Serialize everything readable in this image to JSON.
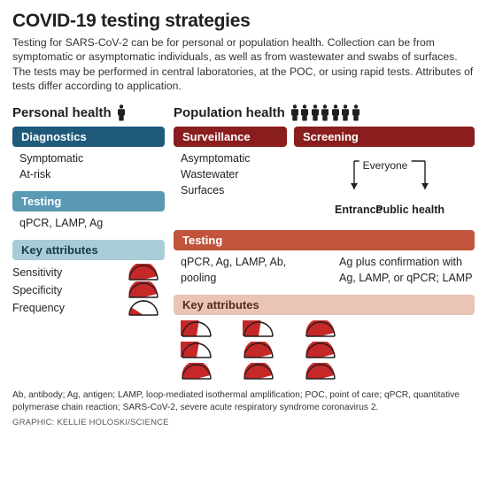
{
  "title": "COVID-19 testing strategies",
  "intro": "Testing for SARS-CoV-2 can be for personal or population health. Collection can be from symptomatic or asymptomatic individuals, as well as from wastewater and swabs of surfaces. The tests may be performed in central laboratories, at the POC, or using rapid tests. Attributes of tests differ according to application.",
  "personal": {
    "heading": "Personal health",
    "icon_count": 1,
    "sections": {
      "diagnostics": {
        "label": "Diagnostics",
        "color": "#1f5a7a",
        "items": [
          "Symptomatic",
          "At-risk"
        ]
      },
      "testing": {
        "label": "Testing",
        "color": "#5a9ab5",
        "text": "qPCR, LAMP, Ag"
      },
      "attributes": {
        "label": "Key attributes",
        "color": "#a8cdd9",
        "label_text_color": "#1a3a4a",
        "rows": [
          {
            "name": "Sensitivity",
            "gauge": 0.92
          },
          {
            "name": "Specificity",
            "gauge": 0.92
          },
          {
            "name": "Frequency",
            "gauge": 0.18
          }
        ]
      }
    }
  },
  "population": {
    "heading": "Population health",
    "icon_count": 7,
    "sections": {
      "surveillance": {
        "label": "Surveillance",
        "color": "#8a1d1d",
        "items": [
          "Asymptomatic",
          "Wastewater",
          "Surfaces"
        ]
      },
      "screening": {
        "label": "Screening",
        "color": "#8a1d1d",
        "everyone": "Everyone",
        "entrance": "Entrance",
        "public": "Public health",
        "arrow_color": "#231f20"
      },
      "testing": {
        "label": "Testing",
        "color": "#c1543b",
        "left": "qPCR, Ag, LAMP, Ab, pooling",
        "right": "Ag plus confirmation with Ag, LAMP, or qPCR; LAMP"
      },
      "attributes": {
        "label": "Key attributes",
        "color": "#eac4b5",
        "label_text_color": "#5a2a20",
        "columns": [
          [
            0.55,
            0.55,
            0.92
          ],
          [
            0.55,
            0.92,
            0.92
          ],
          [
            0.92,
            0.92,
            0.92
          ]
        ]
      }
    }
  },
  "gauge_style": {
    "fill": "#c62828",
    "outline": "#231f20",
    "bg": "#ffffff",
    "width": 36,
    "height": 18,
    "stroke_width": 1.4
  },
  "person_icon": {
    "fill": "#231f20",
    "width": 10,
    "height": 19
  },
  "footnote": "Ab, antibody; Ag, antigen; LAMP, loop-mediated isothermal amplification; POC, point of care; qPCR, quantitative polymerase chain reaction; SARS-CoV-2, severe acute respiratory syndrome coronavirus 2.",
  "credit": "GRAPHIC: KELLIE HOLOSKI/SCIENCE"
}
